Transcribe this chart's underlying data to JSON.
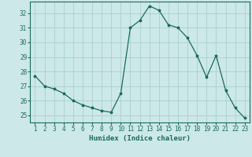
{
  "x": [
    1,
    2,
    3,
    4,
    5,
    6,
    7,
    8,
    9,
    10,
    11,
    12,
    13,
    14,
    15,
    16,
    17,
    18,
    19,
    20,
    21,
    22,
    23
  ],
  "y": [
    27.7,
    27.0,
    26.8,
    26.5,
    26.0,
    25.7,
    25.5,
    25.3,
    25.2,
    26.5,
    31.0,
    31.5,
    32.5,
    32.2,
    31.2,
    31.0,
    30.3,
    29.1,
    27.6,
    29.1,
    26.7,
    25.5,
    24.8
  ],
  "line_color": "#1a6b5a",
  "marker": "*",
  "marker_size": 2.5,
  "bg_color": "#cce8e8",
  "grid_color": "#aacfcf",
  "xlabel": "Humidex (Indice chaleur)",
  "ylim_min": 24.5,
  "ylim_max": 32.8,
  "xlim_min": 0.5,
  "xlim_max": 23.5,
  "yticks": [
    25,
    26,
    27,
    28,
    29,
    30,
    31,
    32
  ],
  "xticks": [
    1,
    2,
    3,
    4,
    5,
    6,
    7,
    8,
    9,
    10,
    11,
    12,
    13,
    14,
    15,
    16,
    17,
    18,
    19,
    20,
    21,
    22,
    23
  ],
  "tick_color": "#1a6b5a",
  "label_fontsize": 6.5,
  "tick_fontsize": 5.5
}
